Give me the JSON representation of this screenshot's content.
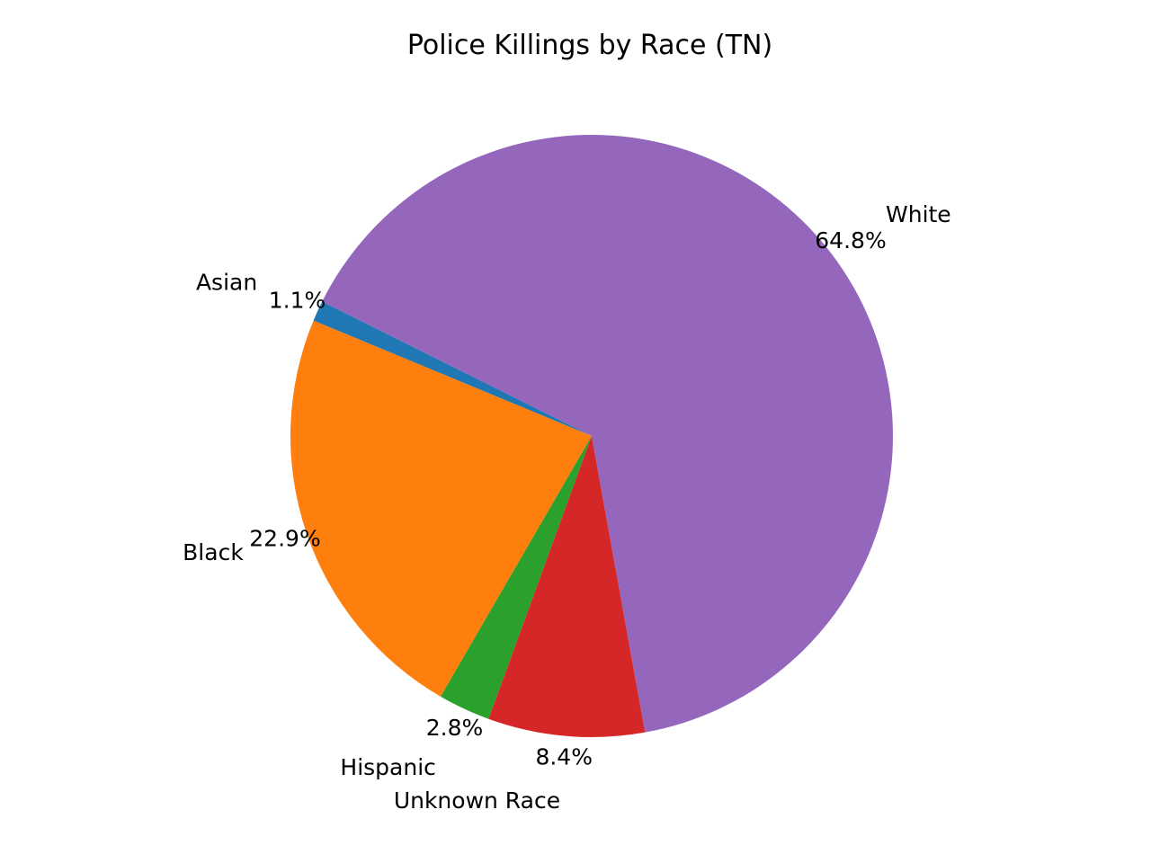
{
  "chart_data": {
    "type": "pie",
    "title": "Police Killings by Race (TN)",
    "start_angle_deg": 153.5,
    "direction": "counterclockwise",
    "slices": [
      {
        "label": "Asian",
        "value": 1.1,
        "pct_label": "1.1%",
        "color": "#1f77b4"
      },
      {
        "label": "Black",
        "value": 22.9,
        "pct_label": "22.9%",
        "color": "#ff7f0e"
      },
      {
        "label": "Hispanic",
        "value": 2.8,
        "pct_label": "2.8%",
        "color": "#2ca02c"
      },
      {
        "label": "Unknown Race",
        "value": 8.4,
        "pct_label": "8.4%",
        "color": "#d62728"
      },
      {
        "label": "White",
        "value": 64.8,
        "pct_label": "64.8%",
        "color": "#9467bd"
      }
    ]
  }
}
